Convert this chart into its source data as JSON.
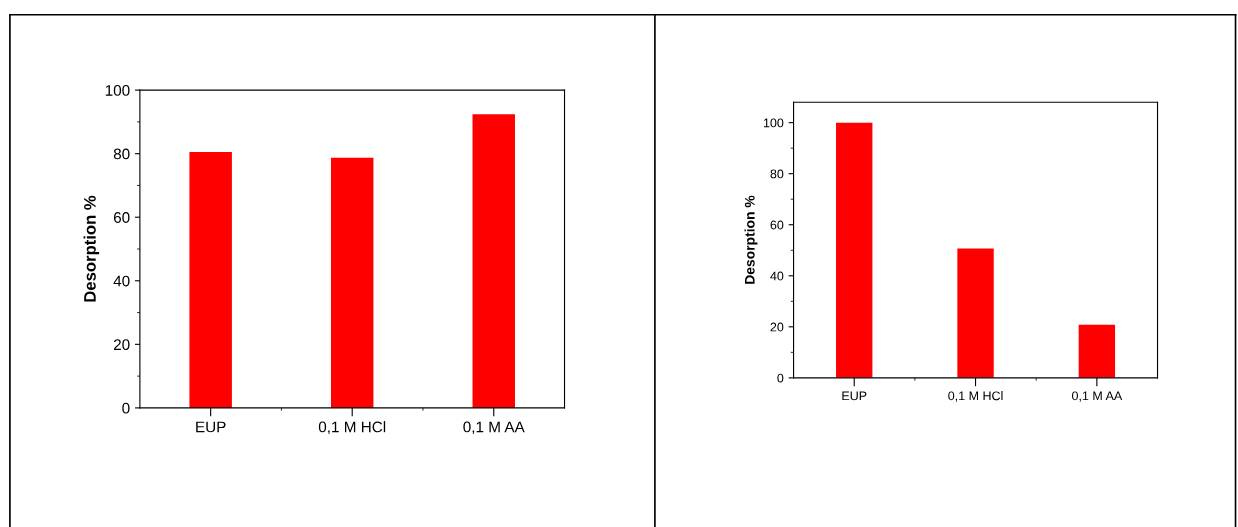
{
  "chart_data": [
    {
      "type": "bar",
      "ylabel": "Desorption %",
      "categories": [
        "EUP",
        "0,1 M HCl",
        "0,1 M AA"
      ],
      "values": [
        80.5,
        78.7,
        92.4
      ],
      "color": "#ff0000",
      "ylim": [
        0,
        100
      ],
      "yticks": [
        0,
        20,
        40,
        60,
        80,
        100
      ],
      "grid": false,
      "legend": false
    },
    {
      "type": "bar",
      "ylabel": "Desorption %",
      "categories": [
        "EUP",
        "0,1 M HCl",
        "0,1 M AA"
      ],
      "values": [
        100,
        50.7,
        20.8
      ],
      "color": "#ff0000",
      "ylim": [
        0,
        108
      ],
      "yticks": [
        0,
        20,
        40,
        60,
        80,
        100
      ],
      "grid": false,
      "legend": false
    }
  ]
}
